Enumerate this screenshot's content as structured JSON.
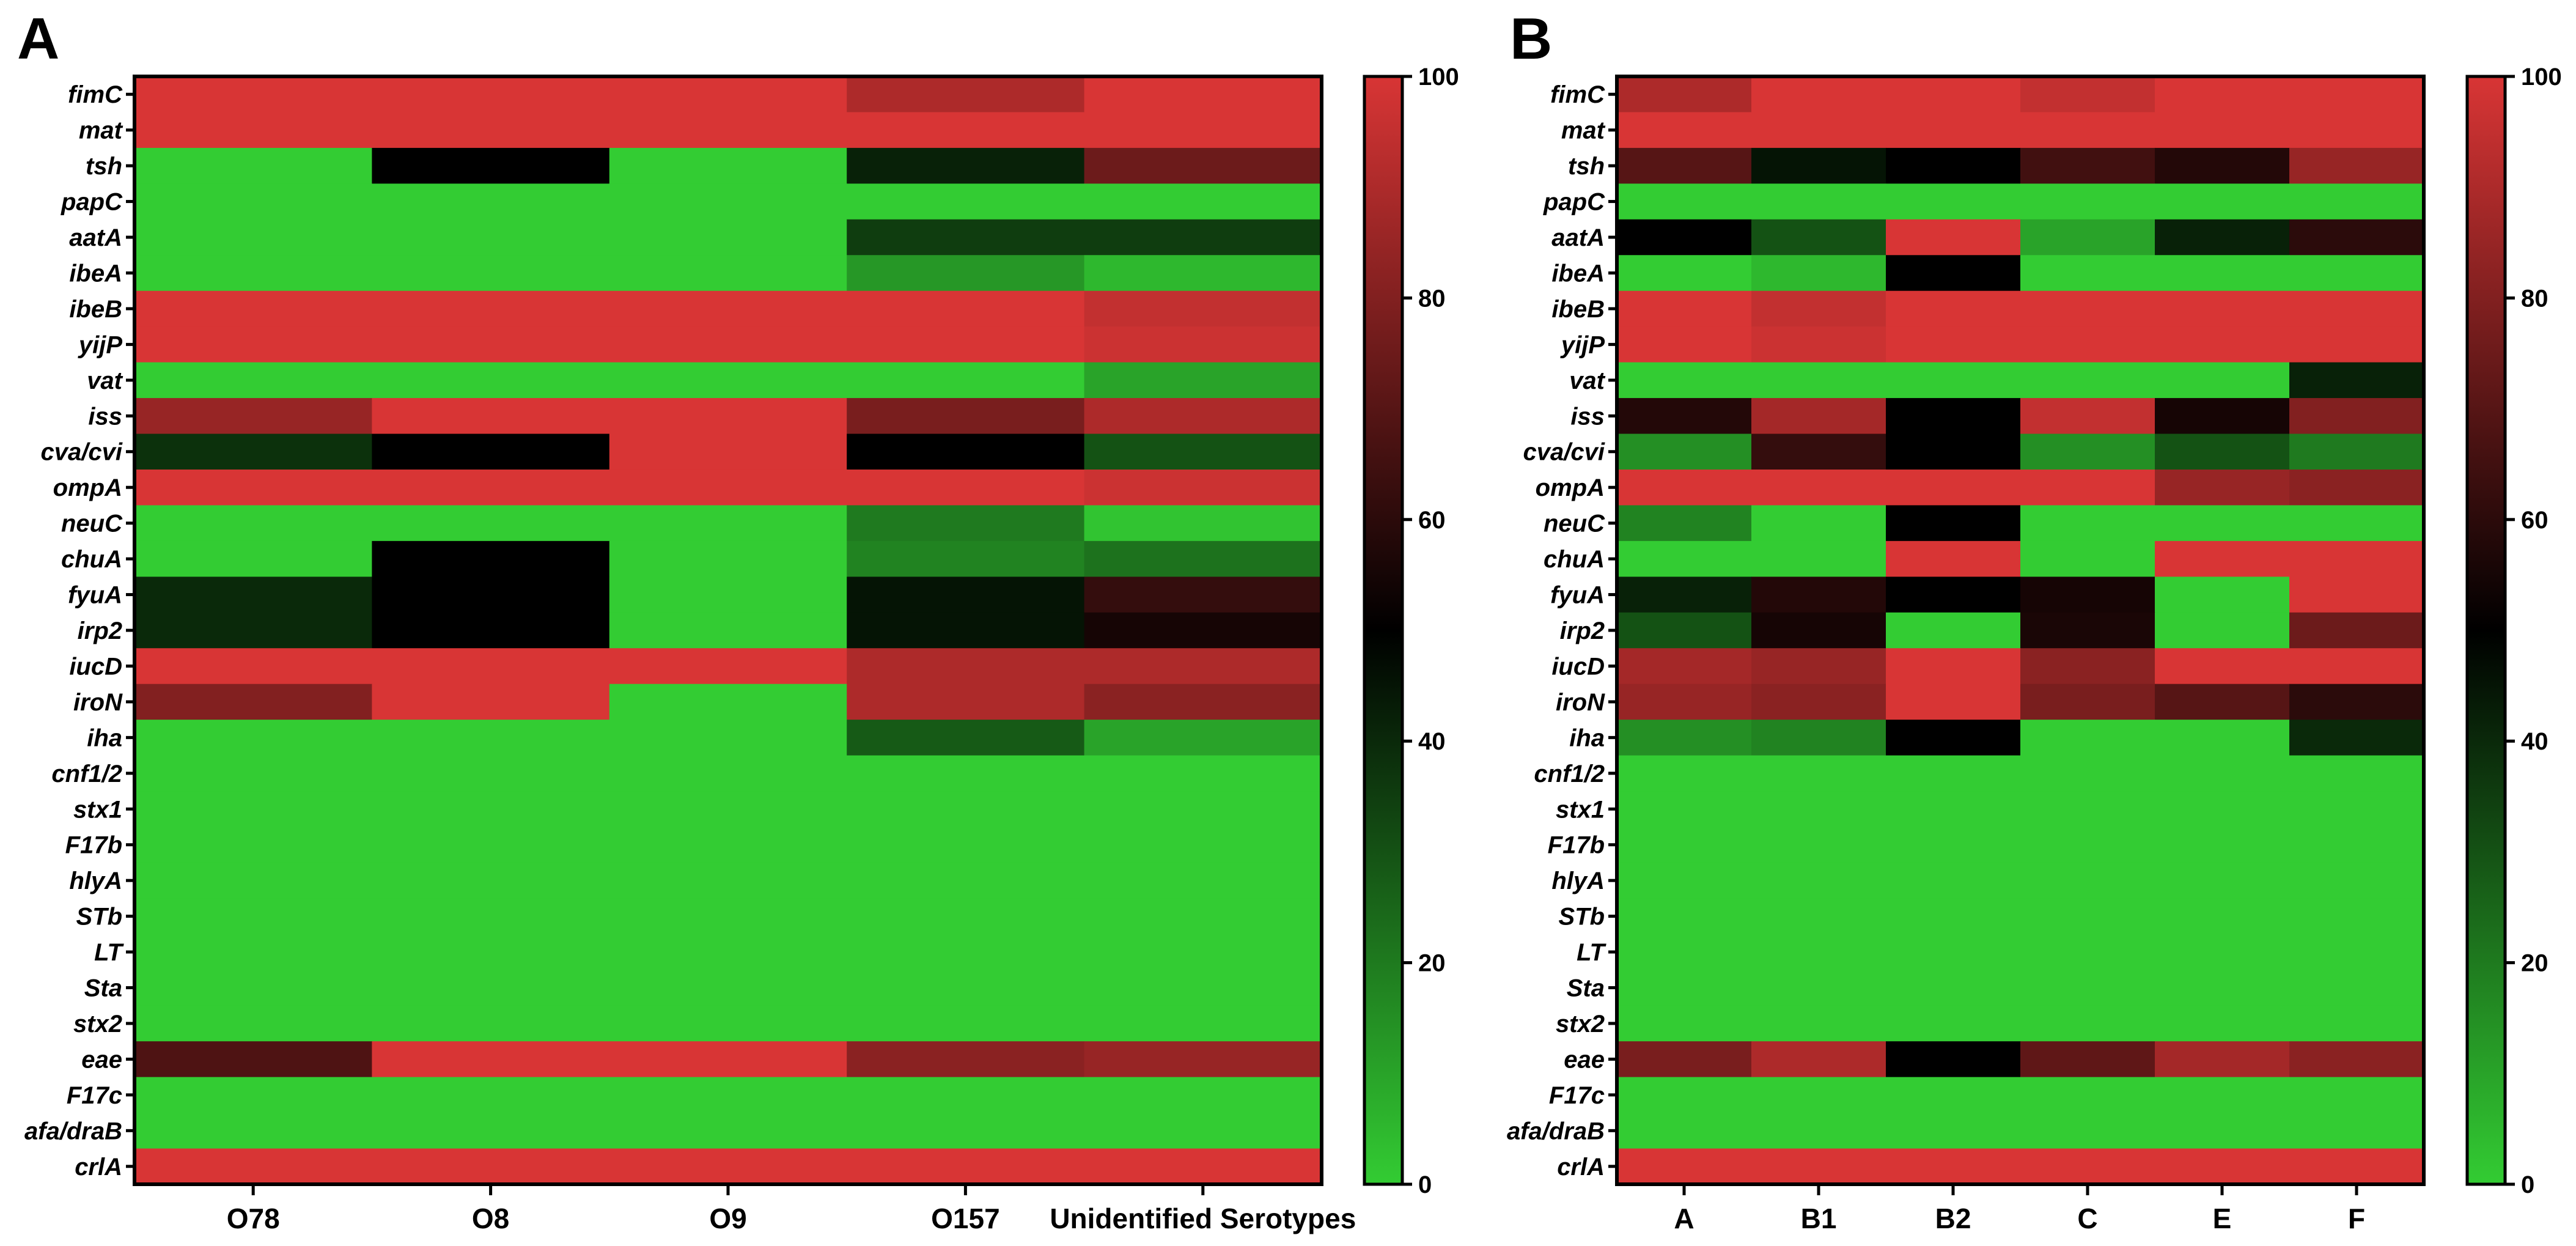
{
  "chart_data": [
    {
      "panel": "A",
      "type": "heatmap",
      "title": "",
      "xlabel": "",
      "ylabel": "",
      "columns": [
        "O78",
        "O8",
        "O9",
        "O157",
        "Unidentified Serotypes"
      ],
      "rows": [
        "fimC",
        "mat",
        "tsh",
        "papC",
        "aatA",
        "ibeA",
        "ibeB",
        "yijP",
        "vat",
        "iss",
        "cva/cvi",
        "ompA",
        "neuC",
        "chuA",
        "fyuA",
        "irp2",
        "iucD",
        "iroN",
        "iha",
        "cnf1/2",
        "stx1",
        "F17b",
        "hlyA",
        "STb",
        "LT",
        "Sta",
        "stx2",
        "eae",
        "F17c",
        "afa/draB",
        "crlA"
      ],
      "values": [
        [
          100,
          100,
          100,
          90,
          100
        ],
        [
          100,
          100,
          100,
          100,
          100
        ],
        [
          0,
          50,
          0,
          42,
          75
        ],
        [
          0,
          0,
          0,
          0,
          0
        ],
        [
          0,
          0,
          0,
          35,
          35
        ],
        [
          0,
          0,
          0,
          13,
          5
        ],
        [
          100,
          100,
          100,
          100,
          95
        ],
        [
          100,
          100,
          100,
          100,
          97
        ],
        [
          0,
          0,
          0,
          0,
          10
        ],
        [
          85,
          100,
          100,
          78,
          90
        ],
        [
          38,
          50,
          100,
          50,
          30
        ],
        [
          100,
          100,
          100,
          100,
          97
        ],
        [
          0,
          0,
          0,
          20,
          2
        ],
        [
          0,
          50,
          0,
          18,
          22
        ],
        [
          40,
          50,
          0,
          45,
          62
        ],
        [
          40,
          50,
          0,
          45,
          55
        ],
        [
          100,
          100,
          100,
          90,
          90
        ],
        [
          80,
          100,
          0,
          90,
          82
        ],
        [
          0,
          0,
          0,
          28,
          10
        ],
        [
          0,
          0,
          0,
          0,
          0
        ],
        [
          0,
          0,
          0,
          0,
          0
        ],
        [
          0,
          0,
          0,
          0,
          0
        ],
        [
          0,
          0,
          0,
          0,
          0
        ],
        [
          0,
          0,
          0,
          0,
          0
        ],
        [
          0,
          0,
          0,
          0,
          0
        ],
        [
          0,
          0,
          0,
          0,
          0
        ],
        [
          0,
          0,
          0,
          0,
          0
        ],
        [
          68,
          100,
          100,
          82,
          85
        ],
        [
          0,
          0,
          0,
          0,
          0
        ],
        [
          0,
          0,
          0,
          0,
          0
        ],
        [
          100,
          100,
          100,
          100,
          100
        ]
      ],
      "colorbar": {
        "min": 0,
        "max": 100,
        "ticks": [
          "0",
          "20",
          "40",
          "60",
          "80",
          "100"
        ]
      },
      "colors": {
        "low": "#33cc33",
        "mid": "#000000",
        "high": "#d83535"
      }
    },
    {
      "panel": "B",
      "type": "heatmap",
      "title": "",
      "xlabel": "",
      "ylabel": "",
      "columns": [
        "A",
        "B1",
        "B2",
        "C",
        "E",
        "F"
      ],
      "rows": [
        "fimC",
        "mat",
        "tsh",
        "papC",
        "aatA",
        "ibeA",
        "ibeB",
        "yijP",
        "vat",
        "iss",
        "cva/cvi",
        "ompA",
        "neuC",
        "chuA",
        "fyuA",
        "irp2",
        "iucD",
        "iroN",
        "iha",
        "cnf1/2",
        "stx1",
        "F17b",
        "hlyA",
        "STb",
        "LT",
        "Sta",
        "stx2",
        "eae",
        "F17c",
        "afa/draB",
        "crlA"
      ],
      "values": [
        [
          90,
          100,
          100,
          95,
          100,
          100
        ],
        [
          100,
          100,
          100,
          100,
          100,
          100
        ],
        [
          70,
          45,
          50,
          65,
          58,
          85
        ],
        [
          0,
          0,
          0,
          0,
          0,
          0
        ],
        [
          50,
          30,
          100,
          10,
          42,
          60
        ],
        [
          0,
          5,
          50,
          0,
          0,
          0
        ],
        [
          100,
          95,
          100,
          100,
          100,
          100
        ],
        [
          100,
          97,
          100,
          100,
          100,
          100
        ],
        [
          0,
          0,
          0,
          0,
          0,
          42
        ],
        [
          58,
          88,
          50,
          95,
          55,
          80
        ],
        [
          15,
          62,
          50,
          15,
          30,
          20
        ],
        [
          100,
          100,
          100,
          100,
          85,
          82
        ],
        [
          18,
          0,
          50,
          0,
          0,
          0
        ],
        [
          0,
          0,
          100,
          0,
          100,
          100
        ],
        [
          42,
          58,
          50,
          55,
          0,
          100
        ],
        [
          30,
          55,
          0,
          56,
          0,
          75
        ],
        [
          88,
          85,
          100,
          82,
          100,
          100
        ],
        [
          85,
          82,
          100,
          78,
          70,
          60
        ],
        [
          15,
          18,
          50,
          0,
          0,
          40
        ],
        [
          0,
          0,
          0,
          0,
          0,
          0
        ],
        [
          0,
          0,
          0,
          0,
          0,
          0
        ],
        [
          0,
          0,
          0,
          0,
          0,
          0
        ],
        [
          0,
          0,
          0,
          0,
          0,
          0
        ],
        [
          0,
          0,
          0,
          0,
          0,
          0
        ],
        [
          0,
          0,
          0,
          0,
          0,
          0
        ],
        [
          0,
          0,
          0,
          0,
          0,
          0
        ],
        [
          0,
          0,
          0,
          0,
          0,
          0
        ],
        [
          78,
          90,
          50,
          72,
          88,
          82
        ],
        [
          0,
          0,
          0,
          0,
          0,
          0
        ],
        [
          0,
          0,
          0,
          0,
          0,
          0
        ],
        [
          100,
          100,
          100,
          100,
          100,
          100
        ]
      ],
      "colorbar": {
        "min": 0,
        "max": 100,
        "ticks": [
          "0",
          "20",
          "40",
          "60",
          "80",
          "100"
        ]
      },
      "colors": {
        "low": "#33cc33",
        "mid": "#000000",
        "high": "#d83535"
      }
    }
  ]
}
